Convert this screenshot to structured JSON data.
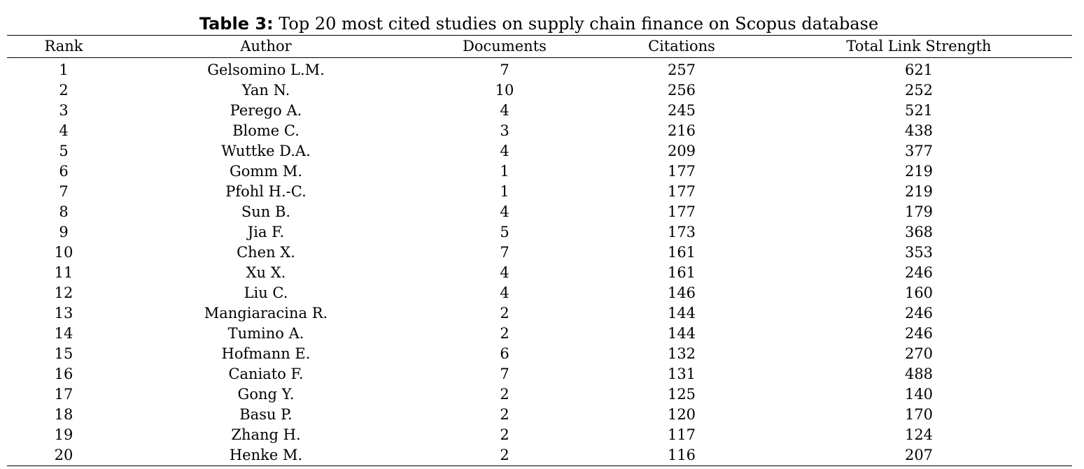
{
  "caption": {
    "label": "Table 3:",
    "text": " Top 20 most cited studies on supply chain finance on Scopus database"
  },
  "columns": [
    "Rank",
    "Author",
    "Documents",
    "Citations",
    "Total Link Strength"
  ],
  "rows": [
    [
      "1",
      "Gelsomino L.M.",
      "7",
      "257",
      "621"
    ],
    [
      "2",
      "Yan N.",
      "10",
      "256",
      "252"
    ],
    [
      "3",
      "Perego A.",
      "4",
      "245",
      "521"
    ],
    [
      "4",
      "Blome C.",
      "3",
      "216",
      "438"
    ],
    [
      "5",
      "Wuttke D.A.",
      "4",
      "209",
      "377"
    ],
    [
      "6",
      "Gomm M.",
      "1",
      "177",
      "219"
    ],
    [
      "7",
      "Pfohl H.-C.",
      "1",
      "177",
      "219"
    ],
    [
      "8",
      "Sun B.",
      "4",
      "177",
      "179"
    ],
    [
      "9",
      "Jia F.",
      "5",
      "173",
      "368"
    ],
    [
      "10",
      "Chen X.",
      "7",
      "161",
      "353"
    ],
    [
      "11",
      "Xu X.",
      "4",
      "161",
      "246"
    ],
    [
      "12",
      "Liu C.",
      "4",
      "146",
      "160"
    ],
    [
      "13",
      "Mangiaracina R.",
      "2",
      "144",
      "246"
    ],
    [
      "14",
      "Tumino A.",
      "2",
      "144",
      "246"
    ],
    [
      "15",
      "Hofmann E.",
      "6",
      "132",
      "270"
    ],
    [
      "16",
      "Caniato F.",
      "7",
      "131",
      "488"
    ],
    [
      "17",
      "Gong Y.",
      "2",
      "125",
      "140"
    ],
    [
      "18",
      "Basu P.",
      "2",
      "120",
      "170"
    ],
    [
      "19",
      "Zhang H.",
      "2",
      "117",
      "124"
    ],
    [
      "20",
      "Henke M.",
      "2",
      "116",
      "207"
    ]
  ]
}
